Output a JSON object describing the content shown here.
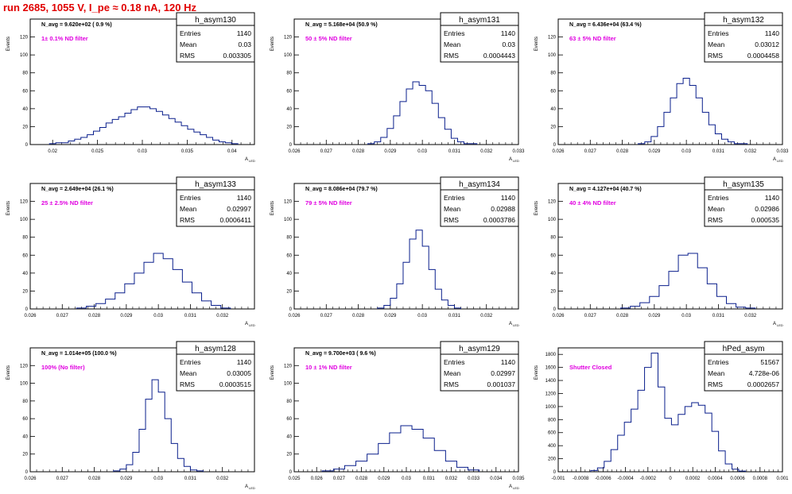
{
  "page": {
    "title": "run 2685,  1055 V, I_pe ≈ 0.18 nA, 120 Hz"
  },
  "colors": {
    "histogram": "#0a1f8c",
    "annotation": "#e000e0",
    "title": "#e00000",
    "frame": "#000000"
  },
  "chart_data": [
    {
      "type": "histogram",
      "name": "h_asym130",
      "navg": "N_avg = 9.620e+02 ( 0.9 %)",
      "filter": "1± 0.1% ND filter",
      "stats": {
        "Entries": "1140",
        "Mean": "0.03",
        "RMS": "0.003305"
      },
      "xlim": [
        0.0175,
        0.0425
      ],
      "ylim": [
        0,
        140
      ],
      "xticks": [
        0.02,
        0.025,
        0.03,
        0.035,
        0.04
      ],
      "xtick_labels": [
        "0.02",
        "0.025",
        "0.03",
        "0.035",
        "0.04"
      ],
      "yticks": [
        0,
        20,
        40,
        60,
        80,
        100,
        120
      ],
      "ylabel": "Events",
      "xlabel": "A",
      "xlabel_sub": "LED",
      "x": [
        0.02,
        0.0207,
        0.0214,
        0.0221,
        0.0228,
        0.0235,
        0.0242,
        0.0249,
        0.0256,
        0.0263,
        0.027,
        0.0277,
        0.0284,
        0.0291,
        0.0298,
        0.0305,
        0.0312,
        0.0319,
        0.0326,
        0.0333,
        0.034,
        0.0347,
        0.0354,
        0.0361,
        0.0368,
        0.0375,
        0.0382,
        0.0389,
        0.0396,
        0.0403
      ],
      "values": [
        1,
        2,
        2,
        4,
        6,
        8,
        11,
        15,
        19,
        24,
        28,
        31,
        35,
        39,
        42,
        42,
        40,
        37,
        33,
        29,
        25,
        21,
        17,
        14,
        11,
        8,
        5,
        3,
        2,
        1
      ]
    },
    {
      "type": "histogram",
      "name": "h_asym131",
      "navg": "N_avg = 5.168e+04 (50.9 %)",
      "filter": "50 ± 5% ND filter",
      "stats": {
        "Entries": "1140",
        "Mean": "0.03",
        "RMS": "0.0004443"
      },
      "xlim": [
        0.026,
        0.033
      ],
      "ylim": [
        0,
        140
      ],
      "xticks": [
        0.026,
        0.027,
        0.028,
        0.029,
        0.03,
        0.031,
        0.032,
        0.033
      ],
      "xtick_labels": [
        "0.026",
        "0.027",
        "0.028",
        "0.029",
        "0.03",
        "0.031",
        "0.032",
        "0.033"
      ],
      "yticks": [
        0,
        20,
        40,
        60,
        80,
        100,
        120
      ],
      "ylabel": "Events",
      "xlabel": "A",
      "xlabel_sub": "LED",
      "x": [
        0.0284,
        0.0286,
        0.0288,
        0.029,
        0.0292,
        0.0294,
        0.0296,
        0.0298,
        0.03,
        0.0302,
        0.0304,
        0.0306,
        0.0308,
        0.031,
        0.0312,
        0.0314,
        0.0316
      ],
      "values": [
        1,
        3,
        8,
        18,
        32,
        48,
        62,
        70,
        66,
        60,
        46,
        30,
        17,
        7,
        3,
        1,
        1
      ]
    },
    {
      "type": "histogram",
      "name": "h_asym132",
      "navg": "N_avg = 6.436e+04 (63.4 %)",
      "filter": "63 ± 5% ND filter",
      "stats": {
        "Entries": "1140",
        "Mean": "0.03012",
        "RMS": "0.0004458"
      },
      "xlim": [
        0.026,
        0.033
      ],
      "ylim": [
        0,
        140
      ],
      "xticks": [
        0.026,
        0.027,
        0.028,
        0.029,
        0.03,
        0.031,
        0.032,
        0.033
      ],
      "xtick_labels": [
        "0.026",
        "0.027",
        "0.028",
        "0.029",
        "0.03",
        "0.031",
        "0.032",
        "0.033"
      ],
      "yticks": [
        0,
        20,
        40,
        60,
        80,
        100,
        120
      ],
      "ylabel": "Events",
      "xlabel": "A",
      "xlabel_sub": "LED",
      "x": [
        0.0286,
        0.0288,
        0.029,
        0.0292,
        0.0294,
        0.0296,
        0.0298,
        0.03,
        0.0302,
        0.0304,
        0.0306,
        0.0308,
        0.031,
        0.0312,
        0.0314,
        0.0316,
        0.0318
      ],
      "values": [
        1,
        3,
        9,
        20,
        36,
        52,
        68,
        74,
        66,
        52,
        36,
        22,
        12,
        6,
        3,
        1,
        1
      ]
    },
    {
      "type": "histogram",
      "name": "h_asym133",
      "navg": "N_avg = 2.649e+04 (26.1 %)",
      "filter": "25 ± 2.5% ND filter",
      "stats": {
        "Entries": "1140",
        "Mean": "0.02997",
        "RMS": "0.0006411"
      },
      "xlim": [
        0.026,
        0.033
      ],
      "ylim": [
        0,
        140
      ],
      "xticks": [
        0.026,
        0.027,
        0.028,
        0.029,
        0.03,
        0.031,
        0.032
      ],
      "xtick_labels": [
        "0.026",
        "0.027",
        "0.028",
        "0.029",
        "0.03",
        "0.031",
        "0.032"
      ],
      "yticks": [
        0,
        20,
        40,
        60,
        80,
        100,
        120
      ],
      "ylabel": "Events",
      "xlabel": "A",
      "xlabel_sub": "LED",
      "x": [
        0.0276,
        0.0279,
        0.0282,
        0.0285,
        0.0288,
        0.0291,
        0.0294,
        0.0297,
        0.03,
        0.0303,
        0.0306,
        0.0309,
        0.0312,
        0.0315,
        0.0318,
        0.0321
      ],
      "values": [
        1,
        3,
        6,
        11,
        18,
        28,
        40,
        52,
        62,
        56,
        44,
        30,
        18,
        9,
        4,
        1
      ]
    },
    {
      "type": "histogram",
      "name": "h_asym134",
      "navg": "N_avg = 8.086e+04 (79.7 %)",
      "filter": "79 ± 5% ND filter",
      "stats": {
        "Entries": "1140",
        "Mean": "0.02988",
        "RMS": "0.0003786"
      },
      "xlim": [
        0.026,
        0.033
      ],
      "ylim": [
        0,
        140
      ],
      "xticks": [
        0.026,
        0.027,
        0.028,
        0.029,
        0.03,
        0.031,
        0.032
      ],
      "xtick_labels": [
        "0.026",
        "0.027",
        "0.028",
        "0.029",
        "0.03",
        "0.031",
        "0.032"
      ],
      "yticks": [
        0,
        20,
        40,
        60,
        80,
        100,
        120
      ],
      "ylabel": "Events",
      "xlabel": "A",
      "xlabel_sub": "LED",
      "x": [
        0.0287,
        0.0289,
        0.0291,
        0.0293,
        0.0295,
        0.0297,
        0.0299,
        0.0301,
        0.0303,
        0.0305,
        0.0307,
        0.0309,
        0.0311
      ],
      "values": [
        1,
        4,
        12,
        28,
        52,
        78,
        88,
        70,
        44,
        22,
        10,
        4,
        1
      ]
    },
    {
      "type": "histogram",
      "name": "h_asym135",
      "navg": "N_avg = 4.127e+04 (40.7 %)",
      "filter": "40 ± 4% ND filter",
      "stats": {
        "Entries": "1140",
        "Mean": "0.02986",
        "RMS": "0.000535"
      },
      "xlim": [
        0.026,
        0.033
      ],
      "ylim": [
        0,
        140
      ],
      "xticks": [
        0.026,
        0.027,
        0.028,
        0.029,
        0.03,
        0.031,
        0.032
      ],
      "xtick_labels": [
        "0.026",
        "0.027",
        "0.028",
        "0.029",
        "0.03",
        "0.031",
        "0.032"
      ],
      "yticks": [
        0,
        20,
        40,
        60,
        80,
        100,
        120
      ],
      "ylabel": "Events",
      "xlabel": "A",
      "xlabel_sub": "LED",
      "x": [
        0.0281,
        0.0284,
        0.0287,
        0.029,
        0.0293,
        0.0296,
        0.0299,
        0.0302,
        0.0305,
        0.0308,
        0.0311,
        0.0314,
        0.0317,
        0.032
      ],
      "values": [
        1,
        3,
        7,
        14,
        26,
        42,
        60,
        62,
        46,
        28,
        14,
        6,
        2,
        1
      ]
    },
    {
      "type": "histogram",
      "name": "h_asym128",
      "navg": "N_avg = 1.014e+05 (100.0 %)",
      "filter": "100% (No filter)",
      "stats": {
        "Entries": "1140",
        "Mean": "0.03005",
        "RMS": "0.0003515"
      },
      "xlim": [
        0.026,
        0.033
      ],
      "ylim": [
        0,
        140
      ],
      "xticks": [
        0.026,
        0.027,
        0.028,
        0.029,
        0.03,
        0.031,
        0.032
      ],
      "xtick_labels": [
        "0.026",
        "0.027",
        "0.028",
        "0.029",
        "0.03",
        "0.031",
        "0.032"
      ],
      "yticks": [
        0,
        20,
        40,
        60,
        80,
        100,
        120
      ],
      "ylabel": "Events",
      "xlabel": "A",
      "xlabel_sub": "LED",
      "x": [
        0.0287,
        0.0289,
        0.0291,
        0.0293,
        0.0295,
        0.0297,
        0.0299,
        0.0301,
        0.0303,
        0.0305,
        0.0307,
        0.0309,
        0.0311,
        0.0313
      ],
      "values": [
        1,
        3,
        8,
        22,
        48,
        82,
        104,
        90,
        60,
        32,
        15,
        6,
        2,
        1
      ]
    },
    {
      "type": "histogram",
      "name": "h_asym129",
      "navg": "N_avg = 9.700e+03 ( 9.6 %)",
      "filter": "10 ± 1% ND filter",
      "stats": {
        "Entries": "1140",
        "Mean": "0.02997",
        "RMS": "0.001037"
      },
      "xlim": [
        0.025,
        0.035
      ],
      "ylim": [
        0,
        140
      ],
      "xticks": [
        0.025,
        0.026,
        0.027,
        0.028,
        0.029,
        0.03,
        0.031,
        0.032,
        0.033,
        0.034,
        0.035
      ],
      "xtick_labels": [
        "0.025",
        "0.026",
        "0.027",
        "0.028",
        "0.029",
        "0.03",
        "0.031",
        "0.032",
        "0.033",
        "0.034",
        "0.035"
      ],
      "yticks": [
        0,
        20,
        40,
        60,
        80,
        100,
        120
      ],
      "ylabel": "Events",
      "xlabel": "A",
      "xlabel_sub": "LED",
      "x": [
        0.0265,
        0.027,
        0.0275,
        0.028,
        0.0285,
        0.029,
        0.0295,
        0.03,
        0.0305,
        0.031,
        0.0315,
        0.032,
        0.0325,
        0.033
      ],
      "values": [
        1,
        3,
        7,
        12,
        20,
        32,
        44,
        52,
        48,
        38,
        24,
        12,
        5,
        2
      ]
    },
    {
      "type": "histogram",
      "name": "hPed_asym",
      "navg": "",
      "filter": "Shutter Closed",
      "stats": {
        "Entries": "51567",
        "Mean": "4.728e-06",
        "RMS": "0.0002657"
      },
      "xlim": [
        -0.001,
        0.001
      ],
      "ylim": [
        0,
        1900
      ],
      "xticks": [
        -0.001,
        -0.0008,
        -0.0006,
        -0.0004,
        -0.0002,
        0,
        0.0002,
        0.0004,
        0.0006,
        0.0008,
        0.001
      ],
      "xtick_labels": [
        "-0.001",
        "-0.0008",
        "-0.0006",
        "-0.0004",
        "-0.0002",
        "0",
        "0.0002",
        "0.0004",
        "0.0006",
        "0.0008",
        "0.001"
      ],
      "yticks": [
        0,
        200,
        400,
        600,
        800,
        1000,
        1200,
        1400,
        1600,
        1800
      ],
      "ylabel": "Events",
      "xlabel": "",
      "xlabel_sub": "",
      "x": [
        -0.00068,
        -0.00062,
        -0.00056,
        -0.0005,
        -0.00044,
        -0.00038,
        -0.00032,
        -0.00026,
        -0.0002,
        -0.00014,
        -8e-05,
        -2e-05,
        4e-05,
        0.0001,
        0.00016,
        0.00022,
        0.00028,
        0.00034,
        0.0004,
        0.00046,
        0.00052,
        0.00058,
        0.00064
      ],
      "values": [
        20,
        60,
        160,
        340,
        560,
        760,
        960,
        1250,
        1600,
        1820,
        1300,
        820,
        720,
        880,
        1000,
        1060,
        1020,
        900,
        620,
        320,
        120,
        40,
        10
      ]
    }
  ]
}
